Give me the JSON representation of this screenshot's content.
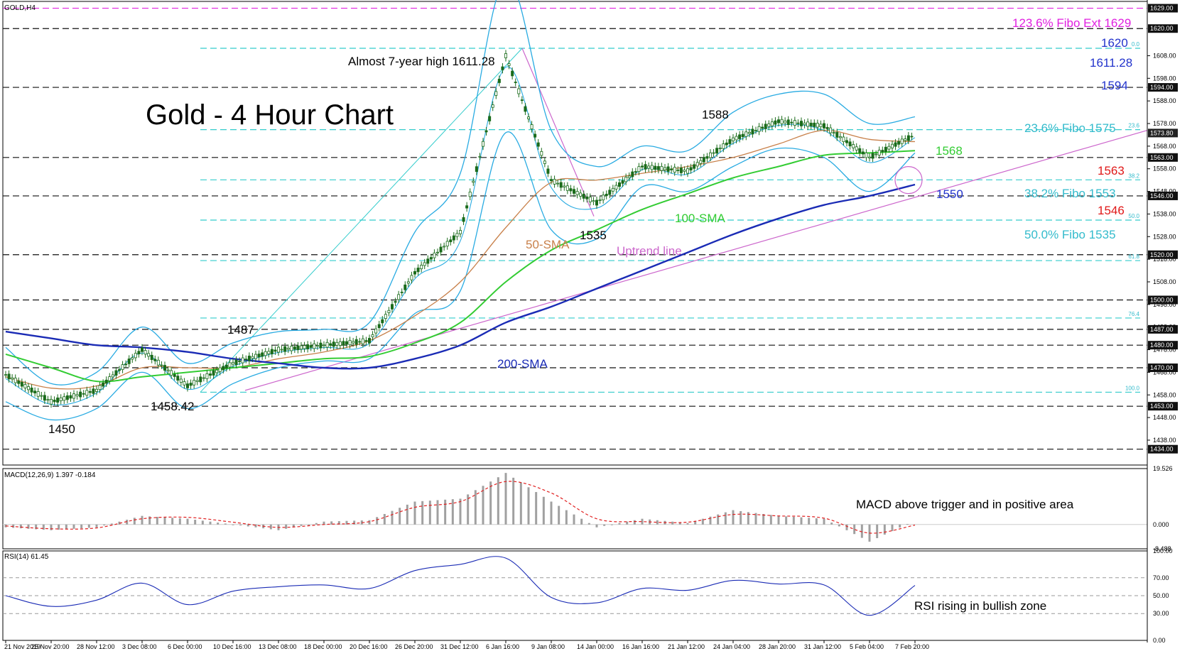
{
  "symbol_label": "GOLD,H4",
  "title": "Gold - 4 Hour Chart",
  "colors": {
    "price": "#1a6b1a",
    "bollinger": "#29abe2",
    "sma50": "#c8804a",
    "sma100": "#33cc33",
    "sma200": "#1a2bb5",
    "uptrend": "#cc66cc",
    "fibo_line": "#33cccc",
    "fibo_text": "#33bbcc",
    "level_blue": "#2233cc",
    "level_red": "#e01818",
    "level_green": "#33cc33",
    "ext_magenta": "#e020e0",
    "macd_hist": "#a0a0a0",
    "macd_signal": "#e02020",
    "rsi": "#1a2bb5"
  },
  "price_axis": {
    "min": 1427,
    "max": 1632,
    "ticks": [
      "1608.00",
      "1598.00",
      "1588.00",
      "1578.00",
      "1568.00",
      "1558.00",
      "1548.00",
      "1538.00",
      "1528.00",
      "1518.00",
      "1508.00",
      "1498.00",
      "1488.00",
      "1478.00",
      "1468.00",
      "1458.00",
      "1448.00",
      "1438.00"
    ],
    "tagged_levels": [
      "1629.00",
      "1620.00",
      "1594.00",
      "1573.80",
      "1563.00",
      "1546.00",
      "1520.00",
      "1500.00",
      "1487.00",
      "1480.00",
      "1470.00",
      "1453.00",
      "1434.00"
    ]
  },
  "horizontal_levels": [
    1620,
    1594,
    1563,
    1546,
    1520,
    1500,
    1487,
    1480,
    1470,
    1453,
    1434
  ],
  "fibo_levels": [
    {
      "price": 1611.28,
      "label": "0.0"
    },
    {
      "price": 1575.3,
      "label": "23.6"
    },
    {
      "price": 1553.1,
      "label": "38.2"
    },
    {
      "price": 1535.3,
      "label": "50.0"
    },
    {
      "price": 1517.4,
      "label": "61.8"
    },
    {
      "price": 1492,
      "label": "76.4"
    },
    {
      "price": 1459.2,
      "label": "100.0"
    }
  ],
  "x_axis_labels": [
    "21 Nov 2019",
    "25 Nov 20:00",
    "28 Nov 12:00",
    "3 Dec 08:00",
    "6 Dec 00:00",
    "10 Dec 16:00",
    "13 Dec 08:00",
    "18 Dec 00:00",
    "20 Dec 16:00",
    "26 Dec 20:00",
    "31 Dec 12:00",
    "6 Jan 16:00",
    "9 Jan 08:00",
    "14 Jan 00:00",
    "16 Jan 16:00",
    "21 Jan 12:00",
    "24 Jan 04:00",
    "28 Jan 20:00",
    "31 Jan 12:00",
    "5 Feb 04:00",
    "7 Feb 20:00"
  ],
  "annotations": {
    "high_note": "Almost 7-year high 1611.28",
    "fibo_ext": "123.6% Fibo Ext 1629",
    "l1620": "1620",
    "l1611": "1611.28",
    "l1594": "1594",
    "fibo236": "23.6% Fibo 1575",
    "l1568": "1568",
    "l1563": "1563",
    "fibo382": "38.2% Fibo 1553",
    "l1550": "1550",
    "l1546": "1546",
    "fibo50": "50.0% Fibo 1535",
    "l1588": "1588",
    "l1535": "1535",
    "l1487": "1487",
    "l1458": "1458.42",
    "l1450": "1450",
    "sma50": "50-SMA",
    "sma100": "100-SMA",
    "sma200": "200-SMA",
    "uptrend": "Uptrend line"
  },
  "macd": {
    "label": "MACD(12,26,9) 1.397 -0.184",
    "ticks": [
      "19.526",
      "0.000",
      "-8.488"
    ],
    "note": "MACD above trigger and in positive area"
  },
  "rsi": {
    "label": "RSI(14) 61.45",
    "ticks": [
      "100.00",
      "70.00",
      "50.00",
      "30.00",
      "0.00"
    ],
    "note": "RSI rising in bullish zone"
  },
  "chart_data": {
    "type": "line",
    "title": "Gold - 4 Hour Chart",
    "xlabel": "",
    "ylabel": "",
    "ylim": [
      1427,
      1632
    ],
    "grid": false,
    "x": [
      "21 Nov 2019",
      "25 Nov 20:00",
      "28 Nov 12:00",
      "3 Dec 08:00",
      "6 Dec 00:00",
      "10 Dec 16:00",
      "13 Dec 08:00",
      "18 Dec 00:00",
      "20 Dec 16:00",
      "26 Dec 20:00",
      "31 Dec 12:00",
      "6 Jan 16:00",
      "9 Jan 08:00",
      "14 Jan 00:00",
      "16 Jan 16:00",
      "21 Jan 12:00",
      "24 Jan 04:00",
      "28 Jan 20:00",
      "31 Jan 12:00",
      "5 Feb 04:00",
      "7 Feb 20:00"
    ],
    "series": [
      {
        "name": "GOLD,H4",
        "values": [
          1467,
          1455,
          1460,
          1478,
          1462,
          1472,
          1478,
          1480,
          1482,
          1512,
          1530,
          1608,
          1553,
          1543,
          1559,
          1557,
          1571,
          1579,
          1577,
          1563,
          1573
        ]
      },
      {
        "name": "50-SMA",
        "values": [
          1466,
          1461,
          1462,
          1470,
          1470,
          1470,
          1474,
          1477,
          1482,
          1493,
          1508,
          1532,
          1552,
          1553,
          1556,
          1559,
          1563,
          1569,
          1575,
          1571,
          1570
        ]
      },
      {
        "name": "100-SMA",
        "values": [
          1476,
          1470,
          1464,
          1466,
          1468,
          1470,
          1472,
          1474,
          1475,
          1481,
          1490,
          1508,
          1522,
          1531,
          1540,
          1547,
          1554,
          1559,
          1564,
          1565,
          1566
        ]
      },
      {
        "name": "200-SMA",
        "values": [
          1486,
          1483,
          1480,
          1479,
          1477,
          1474,
          1472,
          1470,
          1470,
          1474,
          1480,
          1490,
          1497,
          1505,
          1513,
          1521,
          1529,
          1536,
          1542,
          1546,
          1551
        ]
      }
    ]
  }
}
